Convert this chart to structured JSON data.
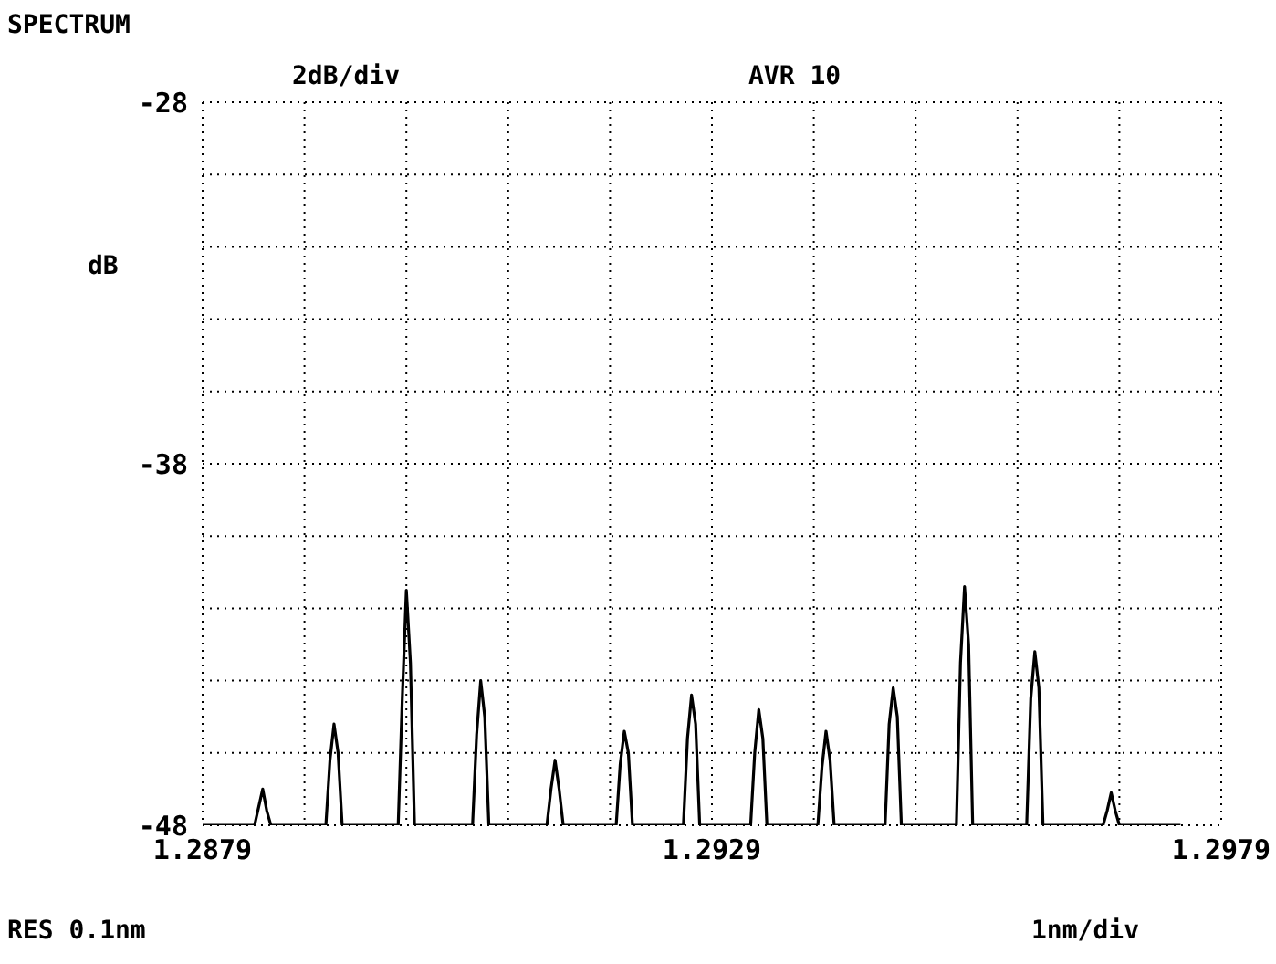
{
  "chart_data": {
    "type": "line",
    "title": "SPECTRUM",
    "ylabel": "dB",
    "annotations": [
      "2dB/div",
      "AVR 10",
      "RES 0.1nm",
      "1nm/div"
    ],
    "x": [
      1.2879,
      1.28841,
      1.28845,
      1.28849,
      1.28853,
      1.28857,
      1.28911,
      1.28915,
      1.28919,
      1.28923,
      1.28927,
      1.28982,
      1.28986,
      1.2899,
      1.28994,
      1.28998,
      1.29055,
      1.29059,
      1.29063,
      1.29067,
      1.29071,
      1.29128,
      1.29132,
      1.29136,
      1.2914,
      1.29144,
      1.29196,
      1.292,
      1.29204,
      1.29208,
      1.29212,
      1.29262,
      1.29266,
      1.2927,
      1.29274,
      1.29278,
      1.29328,
      1.29332,
      1.29336,
      1.2934,
      1.29344,
      1.29394,
      1.29398,
      1.29402,
      1.29406,
      1.2941,
      1.2946,
      1.29464,
      1.29468,
      1.29472,
      1.29476,
      1.2953,
      1.29534,
      1.29538,
      1.29542,
      1.29546,
      1.29599,
      1.29603,
      1.29607,
      1.29611,
      1.29615,
      1.29674,
      1.29678,
      1.29682,
      1.29686,
      1.2969,
      1.2975
    ],
    "series": [
      {
        "color": "#000000",
        "values": [
          -48,
          -48,
          -47.5,
          -47.0,
          -47.6,
          -48,
          -48,
          -46.2,
          -45.2,
          -46.0,
          -48,
          -48,
          -44.5,
          -41.5,
          -43.5,
          -48,
          -48,
          -45.5,
          -44.0,
          -45.0,
          -48,
          -48,
          -47.0,
          -46.2,
          -47.0,
          -48,
          -48,
          -46.3,
          -45.4,
          -46.0,
          -48,
          -48,
          -45.6,
          -44.4,
          -45.2,
          -48,
          -48,
          -46.0,
          -44.8,
          -45.6,
          -48,
          -48,
          -46.4,
          -45.4,
          -46.2,
          -48,
          -48,
          -45.2,
          -44.2,
          -45.0,
          -48,
          -48,
          -43.5,
          -41.4,
          -43.0,
          -48,
          -48,
          -44.5,
          -43.2,
          -44.2,
          -48,
          -48,
          -47.6,
          -47.1,
          -47.6,
          -48,
          -48
        ]
      }
    ],
    "xlim": [
      1.2879,
      1.2979
    ],
    "xticks": [
      1.2879,
      {
        "value": 1.2889,
        "label": null
      },
      {
        "value": 1.2899,
        "label": null
      },
      {
        "value": 1.2909,
        "label": null
      },
      {
        "value": 1.2919,
        "label": null
      },
      1.2929,
      {
        "value": 1.2939,
        "label": null
      },
      {
        "value": 1.2949,
        "label": null
      },
      {
        "value": 1.2959,
        "label": null
      },
      {
        "value": 1.2969,
        "label": null
      },
      1.2979
    ],
    "ylim": [
      -48,
      -28
    ],
    "yticks": [
      -48,
      {
        "value": -46,
        "label": null
      },
      {
        "value": -44,
        "label": null
      },
      {
        "value": -42,
        "label": null
      },
      {
        "value": -40,
        "label": null
      },
      -38,
      {
        "value": -36,
        "label": null
      },
      {
        "value": -34,
        "label": null
      },
      {
        "value": -32,
        "label": null
      },
      {
        "value": -30,
        "label": null
      },
      -28
    ],
    "grid": true,
    "line_style": "solid"
  }
}
